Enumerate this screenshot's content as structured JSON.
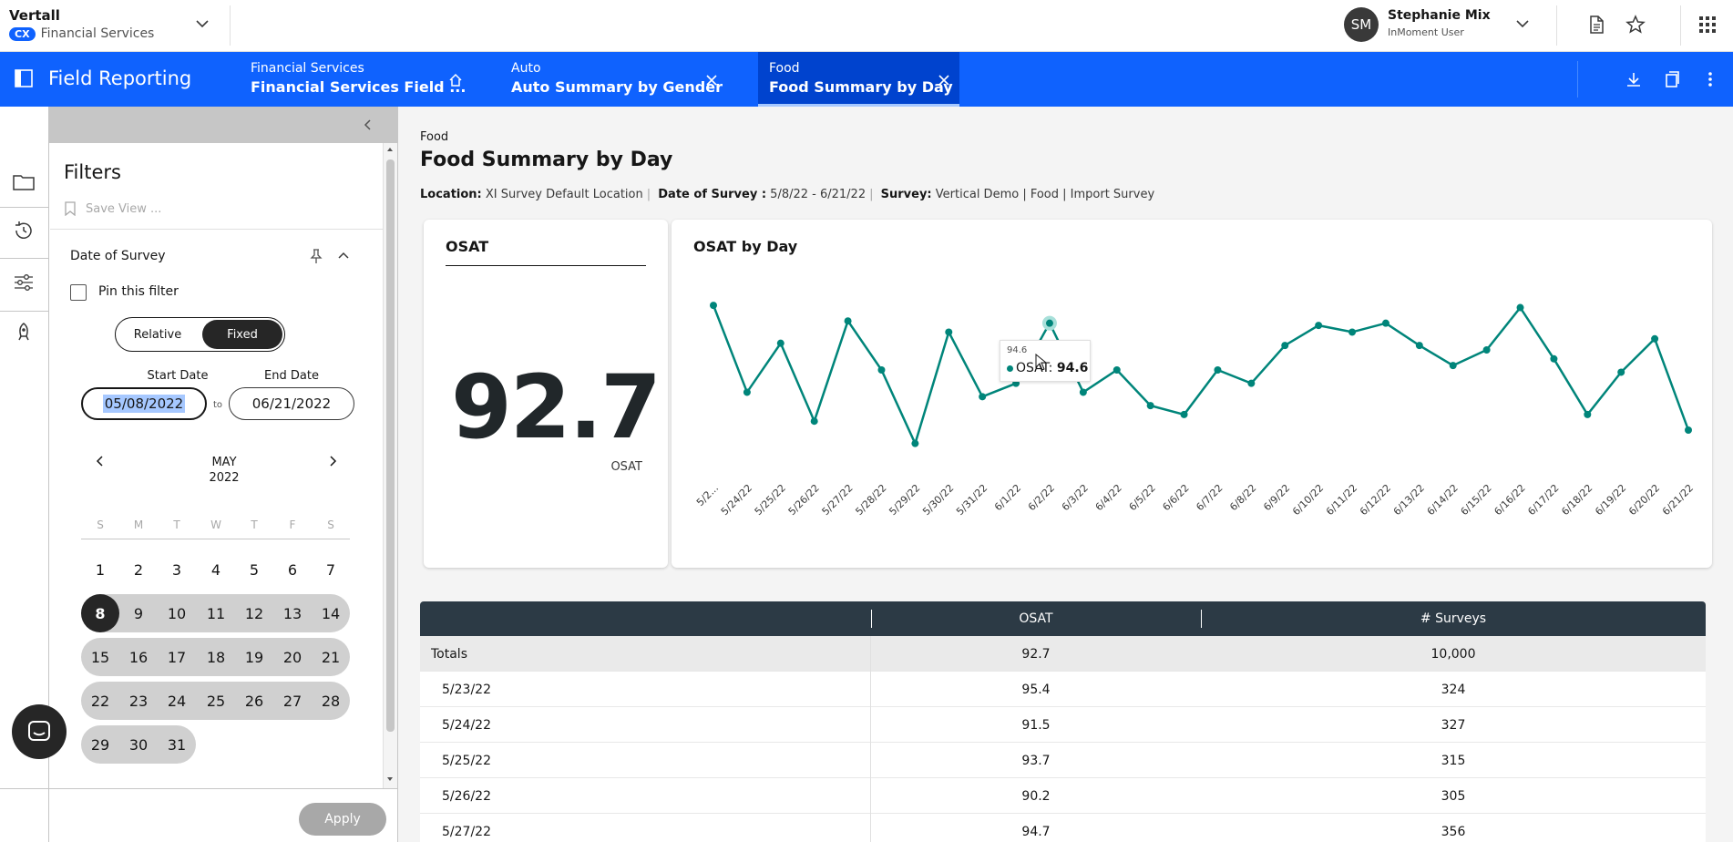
{
  "header": {
    "org_name": "Vertall",
    "product_badge": "CX",
    "product_name": "Financial Services",
    "user_initials": "SM",
    "user_name": "Stephanie Mix",
    "user_role": "InMoment User"
  },
  "tabbar": {
    "app_title": "Field Reporting",
    "tabs": [
      {
        "category": "Financial Services",
        "name": "Financial Services Field ...",
        "icon": "home-icon"
      },
      {
        "category": "Auto",
        "name": "Auto Summary by Gender",
        "icon": "close-icon"
      },
      {
        "category": "Food",
        "name": "Food Summary by Day",
        "icon": "close-icon",
        "active": true
      }
    ]
  },
  "filters": {
    "title": "Filters",
    "save_view": "Save View ...",
    "section_label": "Date of Survey",
    "pin_label": "Pin this filter",
    "mode_relative": "Relative",
    "mode_fixed": "Fixed",
    "start_label": "Start Date",
    "end_label": "End Date",
    "start_value": "05/08/2022",
    "end_value": "06/21/2022",
    "to_label": "to",
    "apply_label": "Apply",
    "calendar": {
      "month": "MAY",
      "year": "2022",
      "weekdays": [
        "S",
        "M",
        "T",
        "W",
        "T",
        "F",
        "S"
      ],
      "weeks": [
        [
          "1",
          "2",
          "3",
          "4",
          "5",
          "6",
          "7"
        ],
        [
          "8",
          "9",
          "10",
          "11",
          "12",
          "13",
          "14"
        ],
        [
          "15",
          "16",
          "17",
          "18",
          "19",
          "20",
          "21"
        ],
        [
          "22",
          "23",
          "24",
          "25",
          "26",
          "27",
          "28"
        ],
        [
          "29",
          "30",
          "31"
        ]
      ],
      "selected_day": "8"
    }
  },
  "page": {
    "breadcrumb": "Food",
    "title": "Food Summary by Day",
    "meta": {
      "location_label": "Location:",
      "location_value": "XI Survey Default Location",
      "date_label": "Date of Survey :",
      "date_value": "5/8/22 - 6/21/22",
      "survey_label": "Survey:",
      "survey_value": "Vertical Demo | Food | Import Survey"
    }
  },
  "osat_card": {
    "title": "OSAT",
    "value": "92.7",
    "caption": "OSAT"
  },
  "chart_card": {
    "title": "OSAT by Day",
    "tooltip": {
      "top": "94.6",
      "series": "OSAT",
      "value": "94.6"
    }
  },
  "chart_data": {
    "type": "line",
    "title": "OSAT by Day",
    "x": [
      "5/2...",
      "5/24/22",
      "5/25/22",
      "5/26/22",
      "5/27/22",
      "5/28/22",
      "5/29/22",
      "5/30/22",
      "5/31/22",
      "6/1/22",
      "6/2/22",
      "6/3/22",
      "6/4/22",
      "6/5/22",
      "6/6/22",
      "6/7/22",
      "6/8/22",
      "6/9/22",
      "6/10/22",
      "6/11/22",
      "6/12/22",
      "6/13/22",
      "6/14/22",
      "6/15/22",
      "6/16/22",
      "6/17/22",
      "6/18/22",
      "6/19/22",
      "6/20/22",
      "6/21/22"
    ],
    "series": [
      {
        "name": "OSAT",
        "values": [
          95.4,
          91.5,
          93.7,
          90.2,
          94.7,
          92.5,
          89.2,
          94.2,
          91.3,
          91.9,
          94.6,
          91.5,
          92.5,
          90.9,
          90.5,
          92.5,
          91.9,
          93.6,
          94.5,
          94.2,
          94.6,
          93.6,
          92.7,
          93.4,
          95.3,
          93.0,
          90.5,
          92.4,
          93.9,
          89.8
        ],
        "color": "#00857a"
      }
    ],
    "ylim": [
      88,
      97
    ],
    "grid": false,
    "legend": "none"
  },
  "table": {
    "headers": [
      "",
      "OSAT",
      "# Surveys"
    ],
    "totals": {
      "label": "Totals",
      "osat": "92.7",
      "surveys": "10,000"
    },
    "rows": [
      {
        "date": "5/23/22",
        "osat": "95.4",
        "surveys": "324"
      },
      {
        "date": "5/24/22",
        "osat": "91.5",
        "surveys": "327"
      },
      {
        "date": "5/25/22",
        "osat": "93.7",
        "surveys": "315"
      },
      {
        "date": "5/26/22",
        "osat": "90.2",
        "surveys": "305"
      },
      {
        "date": "5/27/22",
        "osat": "94.7",
        "surveys": "356"
      }
    ]
  }
}
